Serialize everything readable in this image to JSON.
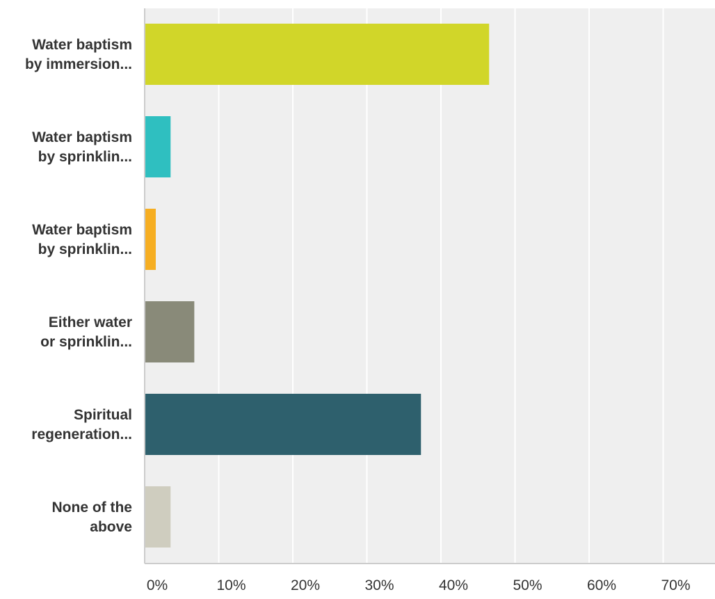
{
  "chart_data": {
    "type": "bar",
    "orientation": "horizontal",
    "categories": [
      [
        "Water baptism",
        "by immersion..."
      ],
      [
        "Water baptism",
        "by sprinklin..."
      ],
      [
        "Water baptism",
        "by sprinklin..."
      ],
      [
        "Either water",
        "or sprinklin..."
      ],
      [
        "Spiritual",
        "regeneration..."
      ],
      [
        "None of the",
        "above"
      ]
    ],
    "values": [
      46.5,
      3.5,
      1.5,
      6.7,
      37.3,
      3.5
    ],
    "colors": [
      "#d1d629",
      "#2fbfc0",
      "#f6ae22",
      "#898a79",
      "#2e606d",
      "#cfcdbf"
    ],
    "xlim": [
      0,
      77
    ],
    "xticks": [
      0,
      10,
      20,
      30,
      40,
      50,
      60,
      70
    ],
    "tick_suffix": "%",
    "grid": true,
    "plot_background": "#efefef",
    "gridline_color": "#ffffff",
    "axis_color": "#cccccc",
    "title": "",
    "xlabel": "",
    "ylabel": ""
  }
}
